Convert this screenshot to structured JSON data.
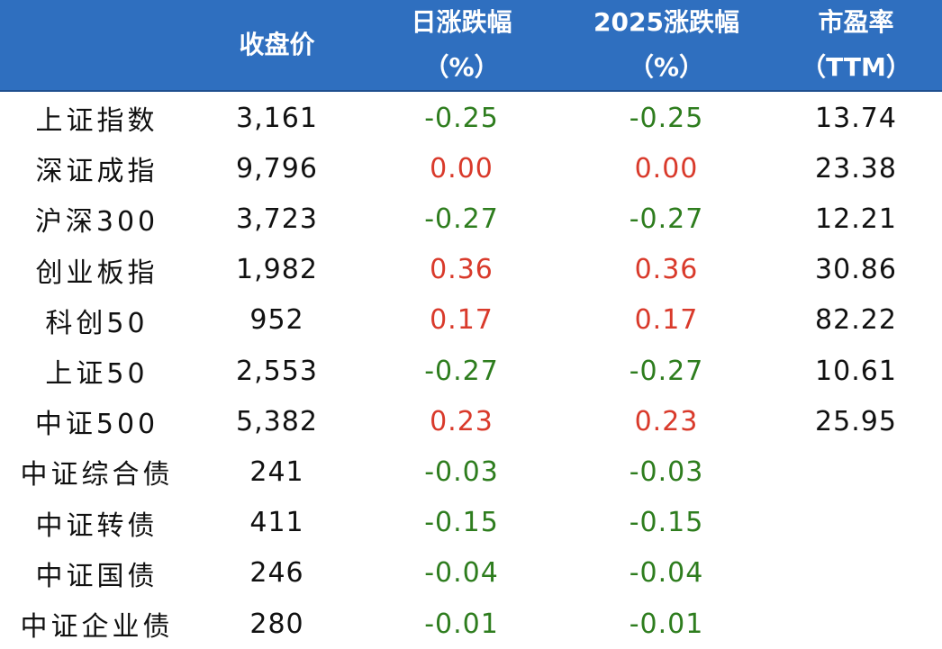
{
  "header": {
    "col_name": "",
    "col_close": "收盘价",
    "col_daily_line1": "日涨跌幅",
    "col_daily_line2": "（%）",
    "col_ytd_line1": "2025涨跌幅",
    "col_ytd_line2": "（%）",
    "col_pe_line1": "市盈率",
    "col_pe_line2": "（TTM）"
  },
  "colors": {
    "header_bg": "#2f6fbf",
    "negative": "#2e7d1e",
    "positive": "#d93a2b",
    "text": "#111111"
  },
  "rows": [
    {
      "name": "上证指数",
      "close": "3,161",
      "daily": "-0.25",
      "ytd": "-0.25",
      "pe": "13.74",
      "daily_sign": "neg",
      "ytd_sign": "neg"
    },
    {
      "name": "深证成指",
      "close": "9,796",
      "daily": "0.00",
      "ytd": "0.00",
      "pe": "23.38",
      "daily_sign": "pos",
      "ytd_sign": "pos"
    },
    {
      "name": "沪深300",
      "close": "3,723",
      "daily": "-0.27",
      "ytd": "-0.27",
      "pe": "12.21",
      "daily_sign": "neg",
      "ytd_sign": "neg"
    },
    {
      "name": "创业板指",
      "close": "1,982",
      "daily": "0.36",
      "ytd": "0.36",
      "pe": "30.86",
      "daily_sign": "pos",
      "ytd_sign": "pos"
    },
    {
      "name": "科创50",
      "close": "952",
      "daily": "0.17",
      "ytd": "0.17",
      "pe": "82.22",
      "daily_sign": "pos",
      "ytd_sign": "pos"
    },
    {
      "name": "上证50",
      "close": "2,553",
      "daily": "-0.27",
      "ytd": "-0.27",
      "pe": "10.61",
      "daily_sign": "neg",
      "ytd_sign": "neg"
    },
    {
      "name": "中证500",
      "close": "5,382",
      "daily": "0.23",
      "ytd": "0.23",
      "pe": "25.95",
      "daily_sign": "pos",
      "ytd_sign": "pos"
    },
    {
      "name": "中证综合债",
      "close": "241",
      "daily": "-0.03",
      "ytd": "-0.03",
      "pe": "",
      "daily_sign": "neg",
      "ytd_sign": "neg"
    },
    {
      "name": "中证转债",
      "close": "411",
      "daily": "-0.15",
      "ytd": "-0.15",
      "pe": "",
      "daily_sign": "neg",
      "ytd_sign": "neg"
    },
    {
      "name": "中证国债",
      "close": "246",
      "daily": "-0.04",
      "ytd": "-0.04",
      "pe": "",
      "daily_sign": "neg",
      "ytd_sign": "neg"
    },
    {
      "name": "中证企业债",
      "close": "280",
      "daily": "-0.01",
      "ytd": "-0.01",
      "pe": "",
      "daily_sign": "neg",
      "ytd_sign": "neg"
    }
  ]
}
